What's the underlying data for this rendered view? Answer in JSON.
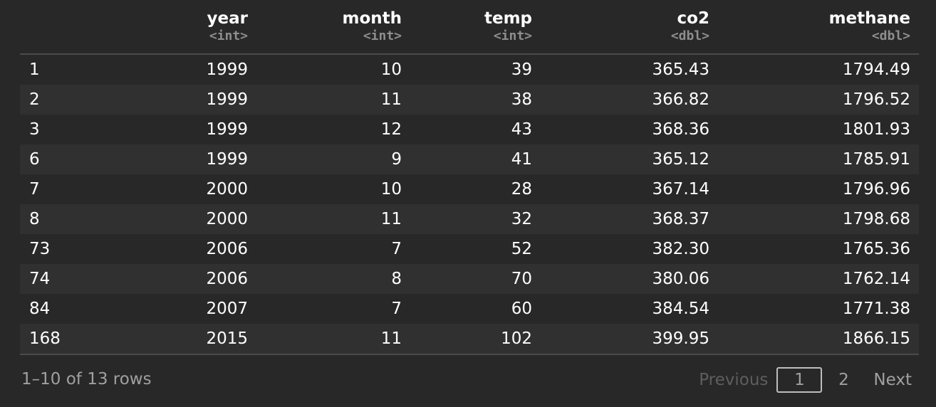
{
  "columns": [
    {
      "name": "",
      "type": ""
    },
    {
      "name": "year",
      "type": "<int>"
    },
    {
      "name": "month",
      "type": "<int>"
    },
    {
      "name": "temp",
      "type": "<int>"
    },
    {
      "name": "co2",
      "type": "<dbl>"
    },
    {
      "name": "methane",
      "type": "<dbl>"
    }
  ],
  "rows": [
    [
      "1",
      "1999",
      "10",
      "39",
      "365.43",
      "1794.49"
    ],
    [
      "2",
      "1999",
      "11",
      "38",
      "366.82",
      "1796.52"
    ],
    [
      "3",
      "1999",
      "12",
      "43",
      "368.36",
      "1801.93"
    ],
    [
      "6",
      "1999",
      "9",
      "41",
      "365.12",
      "1785.91"
    ],
    [
      "7",
      "2000",
      "10",
      "28",
      "367.14",
      "1796.96"
    ],
    [
      "8",
      "2000",
      "11",
      "32",
      "368.37",
      "1798.68"
    ],
    [
      "73",
      "2006",
      "7",
      "52",
      "382.30",
      "1765.36"
    ],
    [
      "74",
      "2006",
      "8",
      "70",
      "380.06",
      "1762.14"
    ],
    [
      "84",
      "2007",
      "7",
      "60",
      "384.54",
      "1771.38"
    ],
    [
      "168",
      "2015",
      "11",
      "102",
      "399.95",
      "1866.15"
    ]
  ],
  "footer": {
    "row_info": "1–10 of 13 rows",
    "previous": "Previous",
    "pages": [
      "1",
      "2"
    ],
    "current_page": "1",
    "next": "Next"
  }
}
